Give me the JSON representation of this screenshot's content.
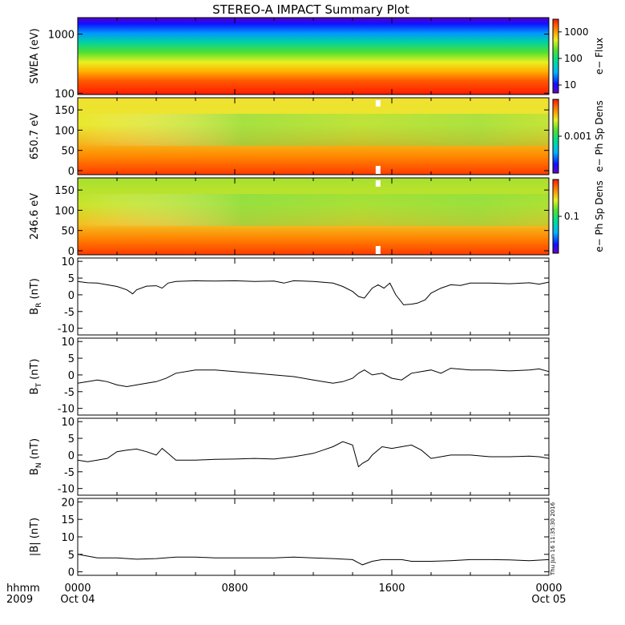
{
  "title": "STEREO-A IMPACT Summary Plot",
  "stamp": "Thu Jun 16 11:35:30 2016",
  "time_axis": {
    "corner_top": "hhmm",
    "corner_bottom": "2009",
    "ticks": [
      {
        "hours": 0,
        "top": "0000",
        "bottom": "Oct 04"
      },
      {
        "hours": 8,
        "top": "0800",
        "bottom": ""
      },
      {
        "hours": 16,
        "top": "1600",
        "bottom": ""
      },
      {
        "hours": 24,
        "top": "0000",
        "bottom": "Oct 05"
      }
    ],
    "range_hours": [
      0,
      24
    ]
  },
  "chart_data": [
    {
      "type": "heatmap",
      "ylabel": "SWEA (eV)",
      "yscale": "log",
      "ylim": [
        95,
        1900
      ],
      "yticks": [
        {
          "v": 100,
          "label": "100"
        },
        {
          "v": 1000,
          "label": "1000"
        }
      ],
      "colorbar": {
        "label": "e− Flux",
        "scale": "log",
        "ticks": [
          {
            "v": 10,
            "label": "10"
          },
          {
            "v": 100,
            "label": "100"
          },
          {
            "v": 1000,
            "label": "1000"
          }
        ],
        "range": [
          5,
          3000
        ]
      }
    },
    {
      "type": "heatmap",
      "ylabel": "650.7 eV",
      "ylim": [
        -10,
        180
      ],
      "yticks": [
        {
          "v": 0,
          "label": "0"
        },
        {
          "v": 50,
          "label": "50"
        },
        {
          "v": 100,
          "label": "100"
        },
        {
          "v": 150,
          "label": "150"
        }
      ],
      "colorbar": {
        "label": "e− Ph Sp Dens",
        "scale": "log",
        "ticks": [
          {
            "v": 0.001,
            "label": "0.001"
          }
        ]
      }
    },
    {
      "type": "heatmap",
      "ylabel": "246.6 eV",
      "ylim": [
        -10,
        180
      ],
      "yticks": [
        {
          "v": 0,
          "label": "0"
        },
        {
          "v": 50,
          "label": "50"
        },
        {
          "v": 100,
          "label": "100"
        },
        {
          "v": 150,
          "label": "150"
        }
      ],
      "colorbar": {
        "label": "e− Ph Sp Dens",
        "scale": "log",
        "ticks": [
          {
            "v": 0.1,
            "label": "0.1"
          }
        ]
      }
    },
    {
      "type": "line",
      "ylabel": "B",
      "ylabel_sub": "R",
      "ylabel_unit": " (nT)",
      "ylim": [
        -12,
        11
      ],
      "yticks": [
        {
          "v": 10,
          "label": "10"
        },
        {
          "v": 5,
          "label": "5"
        },
        {
          "v": 0,
          "label": "0"
        },
        {
          "v": -5,
          "label": "-5"
        },
        {
          "v": -10,
          "label": "-10"
        }
      ],
      "x": [
        0,
        0.5,
        1,
        1.5,
        2,
        2.5,
        2.8,
        3,
        3.5,
        4,
        4.3,
        4.6,
        5,
        6,
        7,
        8,
        9,
        10,
        10.5,
        11,
        12,
        13,
        13.5,
        14,
        14.3,
        14.6,
        15,
        15.3,
        15.6,
        15.9,
        16.2,
        16.6,
        17,
        17.3,
        17.7,
        18,
        18.5,
        19,
        19.5,
        20,
        21,
        22,
        23,
        23.5,
        24
      ],
      "y": [
        4,
        3.6,
        3.5,
        3,
        2.5,
        1.5,
        0.3,
        1.5,
        2.6,
        2.7,
        2,
        3.5,
        4,
        4.2,
        4.1,
        4.2,
        4,
        4.1,
        3.5,
        4.2,
        4,
        3.5,
        2.5,
        1,
        -0.5,
        -1,
        2,
        3,
        2,
        3.5,
        0,
        -3,
        -2.8,
        -2.5,
        -1.5,
        0.5,
        2,
        3,
        2.8,
        3.5,
        3.5,
        3.3,
        3.6,
        3.2,
        3.8
      ]
    },
    {
      "type": "line",
      "ylabel": "B",
      "ylabel_sub": "T",
      "ylabel_unit": " (nT)",
      "ylim": [
        -12,
        11
      ],
      "yticks": [
        {
          "v": 10,
          "label": "10"
        },
        {
          "v": 5,
          "label": "5"
        },
        {
          "v": 0,
          "label": "0"
        },
        {
          "v": -5,
          "label": "-5"
        },
        {
          "v": -10,
          "label": "-10"
        }
      ],
      "x": [
        0,
        0.5,
        1,
        1.5,
        2,
        2.5,
        3,
        3.5,
        4,
        4.5,
        5,
        6,
        7,
        8,
        9,
        10,
        11,
        12,
        13,
        13.5,
        14,
        14.3,
        14.6,
        15,
        15.5,
        16,
        16.5,
        17,
        17.5,
        18,
        18.5,
        19,
        20,
        21,
        22,
        23,
        23.5,
        24
      ],
      "y": [
        -2.5,
        -2,
        -1.5,
        -2,
        -3,
        -3.5,
        -3,
        -2.5,
        -2,
        -1,
        0.5,
        1.5,
        1.5,
        1,
        0.5,
        0,
        -0.5,
        -1.5,
        -2.5,
        -2,
        -1,
        0.5,
        1.5,
        0,
        0.5,
        -1,
        -1.5,
        0.5,
        1,
        1.5,
        0.5,
        2,
        1.5,
        1.5,
        1.2,
        1.5,
        1.8,
        1
      ]
    },
    {
      "type": "line",
      "ylabel": "B",
      "ylabel_sub": "N",
      "ylabel_unit": " (nT)",
      "ylim": [
        -12,
        11
      ],
      "yticks": [
        {
          "v": 10,
          "label": "10"
        },
        {
          "v": 5,
          "label": "5"
        },
        {
          "v": 0,
          "label": "0"
        },
        {
          "v": -5,
          "label": "-5"
        },
        {
          "v": -10,
          "label": "-10"
        }
      ],
      "x": [
        0,
        0.5,
        1,
        1.5,
        2,
        2.5,
        3,
        3.5,
        4,
        4.3,
        4.6,
        5,
        6,
        7,
        8,
        9,
        10,
        11,
        12,
        12.5,
        13,
        13.5,
        14,
        14.3,
        14.5,
        14.8,
        15,
        15.5,
        16,
        16.5,
        17,
        17.5,
        18,
        18.5,
        19,
        20,
        21,
        22,
        23,
        23.5,
        24
      ],
      "y": [
        -1.5,
        -2,
        -1.5,
        -1,
        1,
        1.5,
        1.8,
        1,
        0,
        2,
        0.5,
        -1.5,
        -1.5,
        -1.3,
        -1.2,
        -1,
        -1.2,
        -0.5,
        0.5,
        1.5,
        2.5,
        4,
        3,
        -3.5,
        -2.5,
        -1.5,
        0,
        2.5,
        2,
        2.5,
        3,
        1.5,
        -1,
        -0.5,
        0,
        0,
        -0.5,
        -0.5,
        -0.3,
        -0.5,
        -1
      ]
    },
    {
      "type": "line",
      "ylabel": "|B| (nT)",
      "ylim": [
        -1,
        21
      ],
      "yticks": [
        {
          "v": 20,
          "label": "20"
        },
        {
          "v": 15,
          "label": "15"
        },
        {
          "v": 10,
          "label": "10"
        },
        {
          "v": 5,
          "label": "5"
        },
        {
          "v": 0,
          "label": "0"
        }
      ],
      "x": [
        0,
        0.5,
        1,
        2,
        3,
        4,
        5,
        6,
        7,
        8,
        9,
        10,
        11,
        12,
        13,
        14,
        14.5,
        15,
        15.5,
        16,
        16.5,
        17,
        18,
        19,
        20,
        21,
        22,
        23,
        24
      ],
      "y": [
        5,
        4.5,
        4,
        4,
        3.6,
        3.8,
        4.2,
        4.2,
        4,
        4,
        4,
        4,
        4.2,
        4,
        3.8,
        3.5,
        2,
        3,
        3.5,
        3.5,
        3.5,
        3,
        3,
        3.2,
        3.5,
        3.5,
        3.4,
        3.2,
        3.5
      ]
    }
  ]
}
